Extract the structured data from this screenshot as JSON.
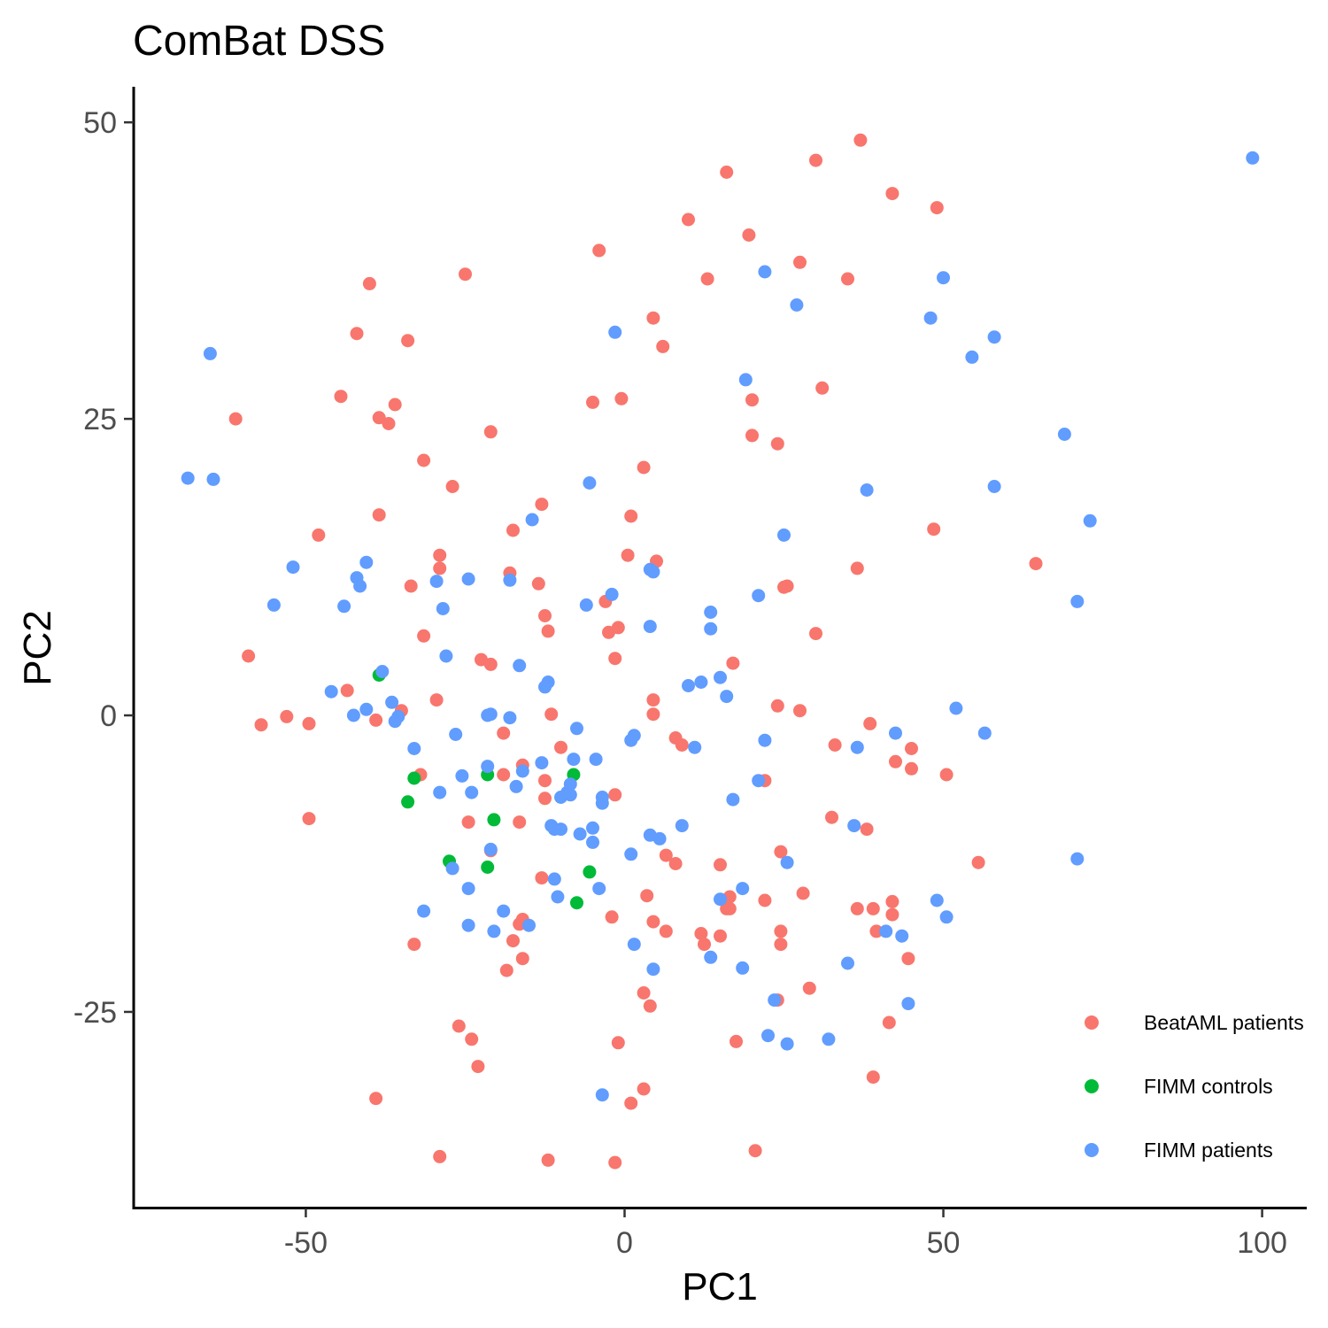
{
  "chart_data": {
    "type": "scatter",
    "title": "ComBat DSS",
    "xlabel": "PC1",
    "ylabel": "PC2",
    "xlim": [
      -77,
      107
    ],
    "ylim": [
      -41.5,
      53
    ],
    "xticks": [
      -50,
      0,
      50,
      100
    ],
    "yticks": [
      -25,
      0,
      25,
      50
    ],
    "grid": false,
    "legend_position": "bottom-right",
    "series": [
      {
        "name": "BeatAML patients",
        "color": "#F8766D",
        "points": [
          [
            37,
            48.5
          ],
          [
            16,
            45.8
          ],
          [
            30,
            46.8
          ],
          [
            42,
            44
          ],
          [
            49,
            42.8
          ],
          [
            10,
            41.8
          ],
          [
            19.5,
            40.5
          ],
          [
            -4,
            39.2
          ],
          [
            27.5,
            38.2
          ],
          [
            -25,
            37.2
          ],
          [
            13,
            36.8
          ],
          [
            35,
            36.8
          ],
          [
            -40,
            36.4
          ],
          [
            4.5,
            33.5
          ],
          [
            -42,
            32.2
          ],
          [
            -34,
            31.6
          ],
          [
            6,
            31.1
          ],
          [
            31,
            27.6
          ],
          [
            -44.5,
            26.9
          ],
          [
            -36,
            26.2
          ],
          [
            -5,
            26.4
          ],
          [
            -0.5,
            26.7
          ],
          [
            20,
            26.6
          ],
          [
            -61,
            25
          ],
          [
            -38.5,
            25.1
          ],
          [
            -37,
            24.6
          ],
          [
            -21,
            23.9
          ],
          [
            20,
            23.6
          ],
          [
            24,
            22.9
          ],
          [
            -31.5,
            21.5
          ],
          [
            3,
            20.9
          ],
          [
            -27,
            19.3
          ],
          [
            -13,
            17.8
          ],
          [
            -38.5,
            16.9
          ],
          [
            1,
            16.8
          ],
          [
            -48,
            15.2
          ],
          [
            -17.5,
            15.6
          ],
          [
            48.5,
            15.7
          ],
          [
            -29,
            13.5
          ],
          [
            0.5,
            13.5
          ],
          [
            5,
            13
          ],
          [
            -29,
            12.4
          ],
          [
            36.5,
            12.4
          ],
          [
            -18,
            12
          ],
          [
            64.5,
            12.8
          ],
          [
            -13.5,
            11.1
          ],
          [
            -33.5,
            10.9
          ],
          [
            25.5,
            10.9
          ],
          [
            25,
            10.8
          ],
          [
            -3,
            9.6
          ],
          [
            -12.5,
            8.4
          ],
          [
            -12,
            7.1
          ],
          [
            -2.5,
            7
          ],
          [
            30,
            6.9
          ],
          [
            -31.5,
            6.7
          ],
          [
            -1,
            7.4
          ],
          [
            -59,
            5
          ],
          [
            -1.5,
            4.8
          ],
          [
            -22.5,
            4.7
          ],
          [
            -21,
            4.3
          ],
          [
            17,
            4.4
          ],
          [
            -43.5,
            2.1
          ],
          [
            -29.5,
            1.3
          ],
          [
            4.5,
            1.3
          ],
          [
            24,
            0.8
          ],
          [
            -35,
            0.4
          ],
          [
            27.5,
            0.4
          ],
          [
            -11.5,
            0.1
          ],
          [
            4.5,
            0.1
          ],
          [
            -53,
            -0.1
          ],
          [
            -57,
            -0.8
          ],
          [
            -49.5,
            -0.7
          ],
          [
            -39,
            -0.4
          ],
          [
            38.5,
            -0.7
          ],
          [
            -19,
            -1.5
          ],
          [
            8,
            -1.9
          ],
          [
            9,
            -2.5
          ],
          [
            -10,
            -2.7
          ],
          [
            33,
            -2.5
          ],
          [
            45,
            -2.8
          ],
          [
            42.5,
            -3.9
          ],
          [
            -16,
            -4.2
          ],
          [
            45,
            -4.5
          ],
          [
            -19,
            -5
          ],
          [
            -32,
            -5
          ],
          [
            50.5,
            -5
          ],
          [
            -12.5,
            -5.5
          ],
          [
            22,
            -5.5
          ],
          [
            -1.5,
            -6.7
          ],
          [
            -12.5,
            -7
          ],
          [
            -49.5,
            -8.7
          ],
          [
            32.5,
            -8.6
          ],
          [
            -24.5,
            -9
          ],
          [
            -16.5,
            -9
          ],
          [
            38,
            -9.6
          ],
          [
            -21,
            -11.4
          ],
          [
            6.5,
            -11.8
          ],
          [
            24.5,
            -11.5
          ],
          [
            8,
            -12.5
          ],
          [
            15,
            -12.6
          ],
          [
            55.5,
            -12.4
          ],
          [
            -13,
            -13.7
          ],
          [
            3.5,
            -15.2
          ],
          [
            16.5,
            -15.3
          ],
          [
            22,
            -15.6
          ],
          [
            28,
            -15
          ],
          [
            42,
            -15.7
          ],
          [
            16,
            -16.3
          ],
          [
            16.5,
            -16.3
          ],
          [
            36.5,
            -16.3
          ],
          [
            39,
            -16.3
          ],
          [
            42,
            -16.8
          ],
          [
            -2,
            -17
          ],
          [
            4.5,
            -17.4
          ],
          [
            -16,
            -17.2
          ],
          [
            -16.5,
            -17.6
          ],
          [
            6.5,
            -18.2
          ],
          [
            12,
            -18.4
          ],
          [
            15,
            -18.6
          ],
          [
            24.5,
            -18.2
          ],
          [
            39.5,
            -18.2
          ],
          [
            -33,
            -19.3
          ],
          [
            -17.5,
            -19
          ],
          [
            12.5,
            -19.3
          ],
          [
            24.5,
            -19.3
          ],
          [
            -16,
            -20.5
          ],
          [
            44.5,
            -20.5
          ],
          [
            -18.5,
            -21.5
          ],
          [
            3,
            -23.4
          ],
          [
            29,
            -23
          ],
          [
            24,
            -24
          ],
          [
            4,
            -24.5
          ],
          [
            41.5,
            -25.9
          ],
          [
            -26,
            -26.2
          ],
          [
            -24,
            -27.3
          ],
          [
            -1,
            -27.6
          ],
          [
            17.5,
            -27.5
          ],
          [
            -23,
            -29.6
          ],
          [
            39,
            -30.5
          ],
          [
            3,
            -31.5
          ],
          [
            -39,
            -32.3
          ],
          [
            1,
            -32.7
          ],
          [
            20.5,
            -36.7
          ],
          [
            -29,
            -37.2
          ],
          [
            -12,
            -37.5
          ],
          [
            -1.5,
            -37.7
          ]
        ]
      },
      {
        "name": "FIMM controls",
        "color": "#00BA38",
        "points": [
          [
            -38.5,
            3.4
          ],
          [
            -21.5,
            -5
          ],
          [
            -8,
            -5
          ],
          [
            -33,
            -5.3
          ],
          [
            -34,
            -7.3
          ],
          [
            -20.5,
            -8.8
          ],
          [
            -27.5,
            -12.3
          ],
          [
            -21.5,
            -12.8
          ],
          [
            -5.5,
            -13.2
          ],
          [
            -7.5,
            -15.8
          ]
        ]
      },
      {
        "name": "FIMM patients",
        "color": "#619CFF",
        "points": [
          [
            98.5,
            47
          ],
          [
            22,
            37.4
          ],
          [
            50,
            36.9
          ],
          [
            27,
            34.6
          ],
          [
            48,
            33.5
          ],
          [
            -1.5,
            32.3
          ],
          [
            58,
            31.9
          ],
          [
            54.5,
            30.2
          ],
          [
            -65,
            30.5
          ],
          [
            19,
            28.3
          ],
          [
            69,
            23.7
          ],
          [
            -68.5,
            20
          ],
          [
            -64.5,
            19.9
          ],
          [
            -5.5,
            19.6
          ],
          [
            58,
            19.3
          ],
          [
            38,
            19
          ],
          [
            73,
            16.4
          ],
          [
            -14.5,
            16.5
          ],
          [
            25,
            15.2
          ],
          [
            -40.5,
            12.9
          ],
          [
            -52,
            12.5
          ],
          [
            4,
            12.3
          ],
          [
            4.5,
            12.1
          ],
          [
            -42,
            11.6
          ],
          [
            -24.5,
            11.5
          ],
          [
            -18,
            11.4
          ],
          [
            -29.5,
            11.3
          ],
          [
            -41.5,
            10.9
          ],
          [
            -2,
            10.2
          ],
          [
            21,
            10.1
          ],
          [
            71,
            9.6
          ],
          [
            -55,
            9.3
          ],
          [
            -44,
            9.2
          ],
          [
            -6,
            9.3
          ],
          [
            -28.5,
            9
          ],
          [
            13.5,
            8.7
          ],
          [
            13.5,
            7.3
          ],
          [
            4,
            7.5
          ],
          [
            -28,
            5
          ],
          [
            -38,
            3.7
          ],
          [
            -16.5,
            4.2
          ],
          [
            15,
            3.2
          ],
          [
            12,
            2.8
          ],
          [
            -12,
            2.8
          ],
          [
            10,
            2.5
          ],
          [
            -46,
            2
          ],
          [
            -12.5,
            2.4
          ],
          [
            16,
            1.6
          ],
          [
            -36.5,
            1.1
          ],
          [
            -40.5,
            0.5
          ],
          [
            52,
            0.6
          ],
          [
            -35.5,
            -0.1
          ],
          [
            -42.5,
            0
          ],
          [
            -21,
            0.1
          ],
          [
            -21.5,
            0
          ],
          [
            -18,
            -0.2
          ],
          [
            -36,
            -0.5
          ],
          [
            -26.5,
            -1.6
          ],
          [
            42.5,
            -1.5
          ],
          [
            56.5,
            -1.5
          ],
          [
            -7.5,
            -1.1
          ],
          [
            1.5,
            -1.7
          ],
          [
            1,
            -2.1
          ],
          [
            22,
            -2.1
          ],
          [
            11,
            -2.7
          ],
          [
            36.5,
            -2.7
          ],
          [
            -33,
            -2.8
          ],
          [
            -8,
            -3.7
          ],
          [
            -4.5,
            -3.7
          ],
          [
            -13,
            -4
          ],
          [
            -21.5,
            -4.3
          ],
          [
            -16,
            -4.7
          ],
          [
            -25.5,
            -5.1
          ],
          [
            21,
            -5.5
          ],
          [
            -8.5,
            -5.8
          ],
          [
            -17,
            -6
          ],
          [
            -29,
            -6.5
          ],
          [
            -24,
            -6.5
          ],
          [
            -3.5,
            -6.9
          ],
          [
            -9,
            -6.5
          ],
          [
            -10,
            -6.9
          ],
          [
            -8.5,
            -6.7
          ],
          [
            -3.5,
            -7.4
          ],
          [
            17,
            -7.1
          ],
          [
            -11.5,
            -9.3
          ],
          [
            -11,
            -9.6
          ],
          [
            -5,
            -9.5
          ],
          [
            -10,
            -9.6
          ],
          [
            9,
            -9.3
          ],
          [
            36,
            -9.3
          ],
          [
            -7,
            -10
          ],
          [
            4,
            -10.1
          ],
          [
            5.5,
            -10.4
          ],
          [
            -5,
            -10.7
          ],
          [
            -21,
            -11.3
          ],
          [
            1,
            -11.7
          ],
          [
            71,
            -12.1
          ],
          [
            25.5,
            -12.4
          ],
          [
            -27,
            -12.9
          ],
          [
            -11,
            -13.8
          ],
          [
            18.5,
            -14.6
          ],
          [
            -24.5,
            -14.6
          ],
          [
            -4,
            -14.6
          ],
          [
            -10.5,
            -15.3
          ],
          [
            15,
            -15.5
          ],
          [
            49,
            -15.6
          ],
          [
            -19,
            -16.5
          ],
          [
            -31.5,
            -16.5
          ],
          [
            50.5,
            -17
          ],
          [
            -24.5,
            -17.7
          ],
          [
            -15,
            -17.7
          ],
          [
            -20.5,
            -18.2
          ],
          [
            41,
            -18.2
          ],
          [
            43.5,
            -18.6
          ],
          [
            1.5,
            -19.3
          ],
          [
            13.5,
            -20.4
          ],
          [
            35,
            -20.9
          ],
          [
            4.5,
            -21.4
          ],
          [
            18.5,
            -21.3
          ],
          [
            23.5,
            -24
          ],
          [
            44.5,
            -24.3
          ],
          [
            22.5,
            -27
          ],
          [
            32,
            -27.3
          ],
          [
            25.5,
            -27.7
          ],
          [
            -3.5,
            -32
          ]
        ]
      }
    ]
  }
}
